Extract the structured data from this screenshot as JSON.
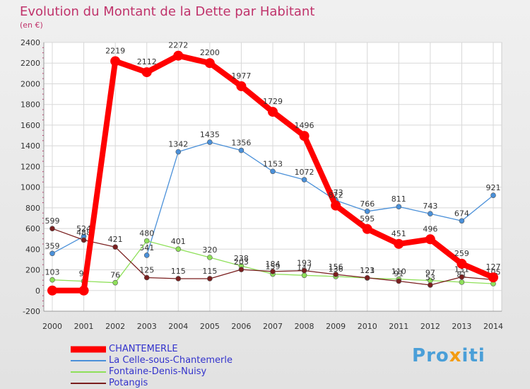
{
  "title": "Evolution du Montant de la Dette par Habitant",
  "subtitle": "(en €)",
  "logo_text": "Proxiti",
  "chart_data": {
    "type": "line",
    "x": [
      "2000",
      "2001",
      "2002",
      "2003",
      "2004",
      "2005",
      "2006",
      "2007",
      "2008",
      "2009",
      "2010",
      "2011",
      "2012",
      "2013",
      "2014"
    ],
    "ylim": [
      -200,
      2400
    ],
    "yticks": [
      -200,
      0,
      200,
      400,
      600,
      800,
      1000,
      1200,
      1400,
      1600,
      1800,
      2000,
      2200,
      2400
    ],
    "grid": true,
    "legend_position": "bottom-left",
    "series": [
      {
        "name": "CHANTEMERLE",
        "color": "#ff0000",
        "width": "thick",
        "values": [
          0,
          0,
          2219,
          2112,
          2272,
          2200,
          1977,
          1729,
          1496,
          822,
          595,
          451,
          496,
          259,
          127
        ],
        "labels": [
          "",
          "",
          "2219",
          "2112",
          "2272",
          "2200",
          "1977",
          "1729",
          "1496",
          "822",
          "595",
          "451",
          "496",
          "259",
          "127"
        ]
      },
      {
        "name": "La Celle-sous-Chantemerle",
        "color": "#4a90d9",
        "width": "thin",
        "values": [
          359,
          524,
          null,
          341,
          1342,
          1435,
          1356,
          1153,
          1072,
          873,
          766,
          811,
          743,
          674,
          921
        ],
        "labels": [
          "359",
          "524",
          "",
          "341",
          "1342",
          "1435",
          "1356",
          "1153",
          "1072",
          "873",
          "766",
          "811",
          "743",
          "674",
          "921"
        ]
      },
      {
        "name": "Fontaine-Denis-Nuisy",
        "color": "#8fe05a",
        "width": "thin",
        "values": [
          103,
          90,
          76,
          480,
          401,
          320,
          238,
          159,
          147,
          136,
          121,
          110,
          97,
          81,
          66
        ],
        "labels": [
          "103",
          "90",
          "76",
          "480",
          "401",
          "320",
          "238",
          "159",
          "147",
          "136",
          "121",
          "110",
          "97",
          "81",
          "66"
        ]
      },
      {
        "name": "Potangis",
        "color": "#7a1f1f",
        "width": "thin",
        "values": [
          599,
          488,
          421,
          125,
          115,
          115,
          203,
          184,
          193,
          156,
          123,
          91,
          53,
          131,
          105
        ],
        "labels": [
          "599",
          "488",
          "421",
          "125",
          "115",
          "115",
          "203",
          "184",
          "193",
          "156",
          "123",
          "91",
          "53",
          "131",
          "105"
        ]
      }
    ]
  }
}
